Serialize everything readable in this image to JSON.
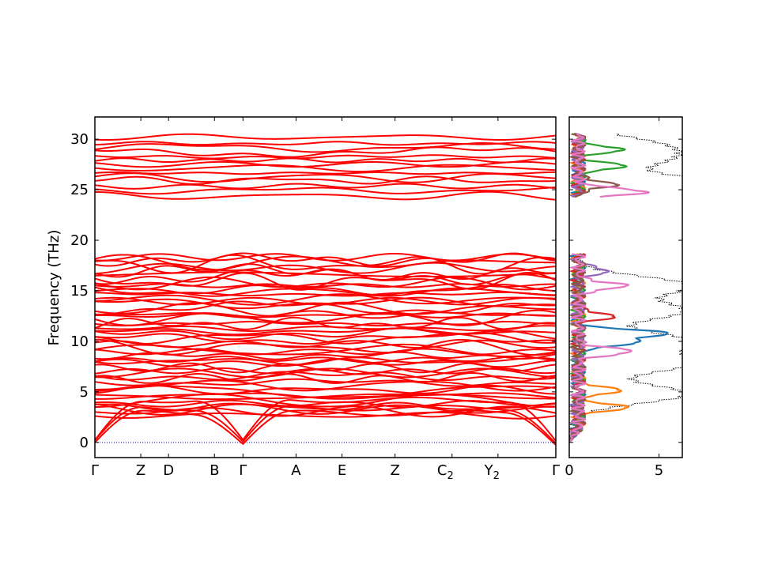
{
  "chart_data": [
    {
      "type": "line",
      "name": "phonon-band-structure",
      "ylabel": "Frequency (THz)",
      "xlabel": "",
      "ylim": [
        -1.5,
        32.2
      ],
      "yticks": [
        0,
        5,
        10,
        15,
        20,
        25,
        30
      ],
      "ytick_labels": [
        "0",
        "5",
        "10",
        "15",
        "20",
        "25",
        "30"
      ],
      "kpoints": [
        {
          "label": "Γ",
          "sub": "",
          "x": 0.0
        },
        {
          "label": "Z",
          "sub": "",
          "x": 0.58
        },
        {
          "label": "D",
          "sub": "",
          "x": 0.93
        },
        {
          "label": "B",
          "sub": "",
          "x": 1.51
        },
        {
          "label": "Γ",
          "sub": "",
          "x": 1.87
        },
        {
          "label": "A",
          "sub": "",
          "x": 2.54
        },
        {
          "label": "E",
          "sub": "",
          "x": 3.12
        },
        {
          "label": "Z",
          "sub": "",
          "x": 3.79
        },
        {
          "label": "C",
          "sub": "2",
          "x": 4.51
        },
        {
          "label": "Y",
          "sub": "2",
          "x": 5.09
        },
        {
          "label": "Γ",
          "sub": "",
          "x": 5.82
        }
      ],
      "xlim": [
        0.0,
        5.82
      ],
      "band_color": "#ff0000",
      "zero_line_color": "#0000cc",
      "optical_gap_thz": [
        18.7,
        24.3
      ],
      "band_groups": [
        {
          "range": [
            0.0,
            4.5
          ],
          "acoustic_max": [
            2.9,
            3.4,
            4.2
          ]
        },
        {
          "range": [
            2.5,
            18.6
          ],
          "count": 54
        },
        {
          "range": [
            24.3,
            30.3
          ],
          "count": 14
        }
      ]
    },
    {
      "type": "line",
      "name": "phonon-dos",
      "xlim": [
        0,
        6.3
      ],
      "xticks": [
        0,
        5
      ],
      "xtick_labels": [
        "0",
        "5"
      ],
      "total_color": "#000000",
      "partial_colors": [
        "#1f77b4",
        "#ff7f0e",
        "#2ca02c",
        "#d62728",
        "#9467bd",
        "#8c564b",
        "#e377c2"
      ],
      "peaks": [
        {
          "series": 0,
          "freq": 10.8,
          "dos": 4.7
        },
        {
          "series": 0,
          "freq": 9.9,
          "dos": 3.4
        },
        {
          "series": 1,
          "freq": 5.2,
          "dos": 2.3
        },
        {
          "series": 1,
          "freq": 3.5,
          "dos": 2.6
        },
        {
          "series": 2,
          "freq": 27.3,
          "dos": 2.5
        },
        {
          "series": 2,
          "freq": 29.0,
          "dos": 2.3
        },
        {
          "series": 5,
          "freq": 25.5,
          "dos": 2.0
        },
        {
          "series": 6,
          "freq": 24.8,
          "dos": 3.7
        },
        {
          "series": 6,
          "freq": 9.0,
          "dos": 3.0
        },
        {
          "series": 6,
          "freq": 15.5,
          "dos": 2.6
        },
        {
          "series": 3,
          "freq": 12.5,
          "dos": 1.9
        },
        {
          "series": 4,
          "freq": 17.0,
          "dos": 1.6
        }
      ],
      "total_peaks": [
        {
          "freq": 4.8,
          "dos": 6.2
        },
        {
          "freq": 7.8,
          "dos": 6.3
        },
        {
          "freq": 10.0,
          "dos": 6.3
        },
        {
          "freq": 13.0,
          "dos": 6.0
        },
        {
          "freq": 15.5,
          "dos": 6.3
        },
        {
          "freq": 24.7,
          "dos": 6.3
        },
        {
          "freq": 25.5,
          "dos": 6.1
        },
        {
          "freq": 28.0,
          "dos": 4.2
        },
        {
          "freq": 29.5,
          "dos": 3.9
        }
      ]
    }
  ]
}
